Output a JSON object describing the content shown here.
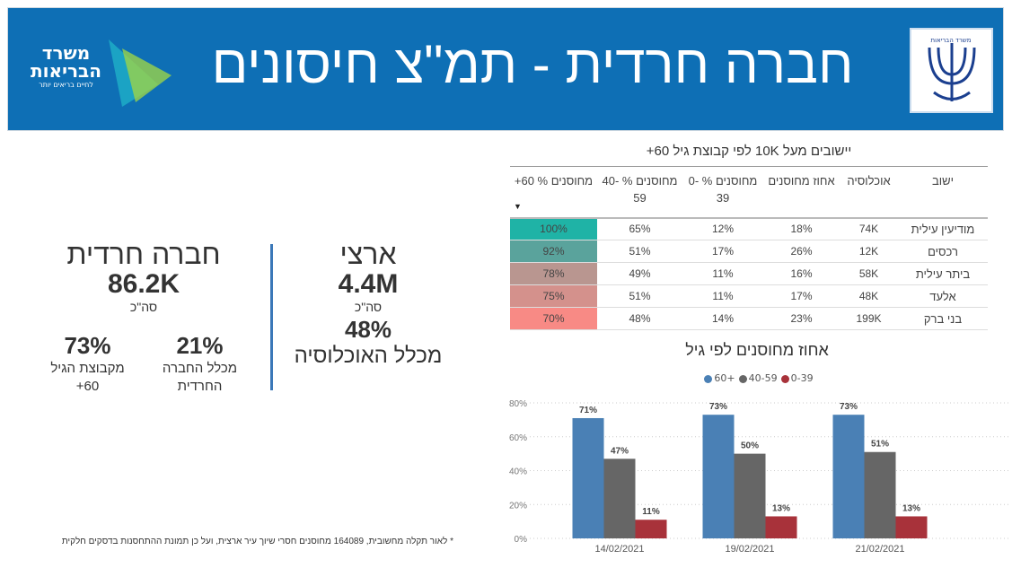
{
  "header": {
    "title": "חברה חרדית - תמ\"צ חיסונים",
    "logo_left_text": [
      "משרד",
      "הבריאות",
      "לחיים בריאים יותר"
    ],
    "logo_right_text": "משרד הבריאות",
    "bg_color": "#0e6fb5"
  },
  "national": {
    "label": "ארצי",
    "total": "4.4M",
    "total_caption": "סה\"כ",
    "pct": "48%",
    "pct_caption": "מכלל האוכלוסיה"
  },
  "haredi": {
    "label": "חברה חרדית",
    "total": "86.2K",
    "total_caption": "סה\"כ",
    "pct_society": "21%",
    "pct_society_caption": "מכלל החברה החרדית",
    "pct_age": "73%",
    "pct_age_caption": "מקבוצת הגיל 60+"
  },
  "table": {
    "title": "יישובים מעל 10K לפי קבוצת גיל 60+",
    "columns": [
      "ישוב",
      "אוכלוסיה",
      "אחוז מחוסנים",
      "מחוסנים % 0-39",
      "מחוסנים % 40-59",
      "מחוסנים % 60+"
    ],
    "sort_icon": "sort-desc-icon",
    "rows": [
      {
        "name": "מודיעין עילית",
        "pop": "74K",
        "pct": "18%",
        "a": "12%",
        "b": "65%",
        "c": "100%",
        "color": "#1fb3a6"
      },
      {
        "name": "רכסים",
        "pop": "12K",
        "pct": "26%",
        "a": "17%",
        "b": "51%",
        "c": "92%",
        "color": "#5aa39c"
      },
      {
        "name": "ביתר עילית",
        "pop": "58K",
        "pct": "16%",
        "a": "11%",
        "b": "49%",
        "c": "78%",
        "color": "#b99690"
      },
      {
        "name": "אלעד",
        "pop": "48K",
        "pct": "17%",
        "a": "11%",
        "b": "51%",
        "c": "75%",
        "color": "#d4918c"
      },
      {
        "name": "בני ברק",
        "pop": "199K",
        "pct": "23%",
        "a": "14%",
        "b": "48%",
        "c": "70%",
        "color": "#f88a85"
      }
    ]
  },
  "chart_data": {
    "type": "bar",
    "title": "אחוז מחוסנים לפי גיל",
    "categories": [
      "14/02/2021",
      "19/02/2021",
      "21/02/2021"
    ],
    "series": [
      {
        "name": "60+",
        "values": [
          71,
          73,
          73
        ],
        "color": "#4a80b5"
      },
      {
        "name": "40-59",
        "values": [
          47,
          50,
          51
        ],
        "color": "#666666"
      },
      {
        "name": "0-39",
        "values": [
          11,
          13,
          13
        ],
        "color": "#a8323a"
      }
    ],
    "ylim": [
      0,
      80
    ],
    "yticks": [
      "0%",
      "20%",
      "40%",
      "60%",
      "80%"
    ],
    "grid": true,
    "legend": "top"
  },
  "footnote": "* לאור תקלה מחשובית, 164089 מחוסנים חסרי שיוך עיר ארצית, ועל כן תמונת ההתחסנות בדסקים חלקית"
}
